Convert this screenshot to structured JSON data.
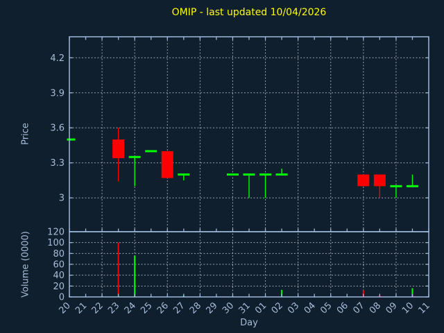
{
  "colors": {
    "background": "#101f2e",
    "spine": "#9db9dc",
    "grid": "#9aa3ab",
    "tick_label": "#a6bdd9",
    "title": "#ffff00",
    "up": "#00ff00",
    "down": "#ff0000"
  },
  "chart_data": [
    {
      "type": "candlestick",
      "title": "OMIP - last updated 10/04/2026",
      "ylabel": "Price",
      "ylim": [
        2.71,
        4.38
      ],
      "y_tick_labels": [
        "4.2",
        "3.9",
        "3.6",
        "3.3",
        "3"
      ],
      "y_tick_values": [
        4.2,
        3.9,
        3.6,
        3.3,
        3.0
      ],
      "x_categories": [
        "20",
        "21",
        "22",
        "23",
        "24",
        "25",
        "26",
        "27",
        "28",
        "29",
        "30",
        "31",
        "01",
        "02",
        "03",
        "04",
        "05",
        "06",
        "07",
        "08",
        "09",
        "10",
        "11"
      ],
      "grid": "dashed, horizontal at price ticks, vertical every 2nd day",
      "legend": "none",
      "candles": [
        {
          "day": "20",
          "open": 3.5,
          "high": 3.5,
          "low": 3.5,
          "close": 3.5
        },
        {
          "day": "23",
          "open": 3.5,
          "high": 3.6,
          "low": 3.14,
          "close": 3.34
        },
        {
          "day": "24",
          "open": 3.35,
          "high": 3.35,
          "low": 3.1,
          "close": 3.35
        },
        {
          "day": "25",
          "open": 3.4,
          "high": 3.4,
          "low": 3.4,
          "close": 3.4
        },
        {
          "day": "26",
          "open": 3.4,
          "high": 3.4,
          "low": 3.17,
          "close": 3.17
        },
        {
          "day": "27",
          "open": 3.2,
          "high": 3.2,
          "low": 3.15,
          "close": 3.2
        },
        {
          "day": "30",
          "open": 3.2,
          "high": 3.2,
          "low": 3.2,
          "close": 3.2
        },
        {
          "day": "31",
          "open": 3.2,
          "high": 3.2,
          "low": 3.0,
          "close": 3.2
        },
        {
          "day": "01",
          "open": 3.2,
          "high": 3.2,
          "low": 3.0,
          "close": 3.2
        },
        {
          "day": "02",
          "open": 3.2,
          "high": 3.25,
          "low": 3.2,
          "close": 3.2
        },
        {
          "day": "07",
          "open": 3.2,
          "high": 3.2,
          "low": 3.1,
          "close": 3.1
        },
        {
          "day": "08",
          "open": 3.2,
          "high": 3.2,
          "low": 3.0,
          "close": 3.1
        },
        {
          "day": "09",
          "open": 3.1,
          "high": 3.1,
          "low": 3.0,
          "close": 3.1
        },
        {
          "day": "10",
          "open": 3.1,
          "high": 3.2,
          "low": 3.1,
          "close": 3.1
        }
      ]
    },
    {
      "type": "bar",
      "ylabel": "Volume (0000)",
      "xlabel": "Day",
      "ylim": [
        0,
        120
      ],
      "y_tick_labels": [
        "120",
        "100",
        "80",
        "60",
        "40",
        "20",
        "0"
      ],
      "y_tick_values": [
        120,
        100,
        80,
        60,
        40,
        20,
        0
      ],
      "grid": "dashed",
      "bars": [
        {
          "day": "23",
          "value": 100
        },
        {
          "day": "24",
          "value": 76
        },
        {
          "day": "27",
          "value": 3
        },
        {
          "day": "02",
          "value": 13
        },
        {
          "day": "07",
          "value": 12
        },
        {
          "day": "08",
          "value": 3
        },
        {
          "day": "10",
          "value": 16
        }
      ]
    }
  ]
}
